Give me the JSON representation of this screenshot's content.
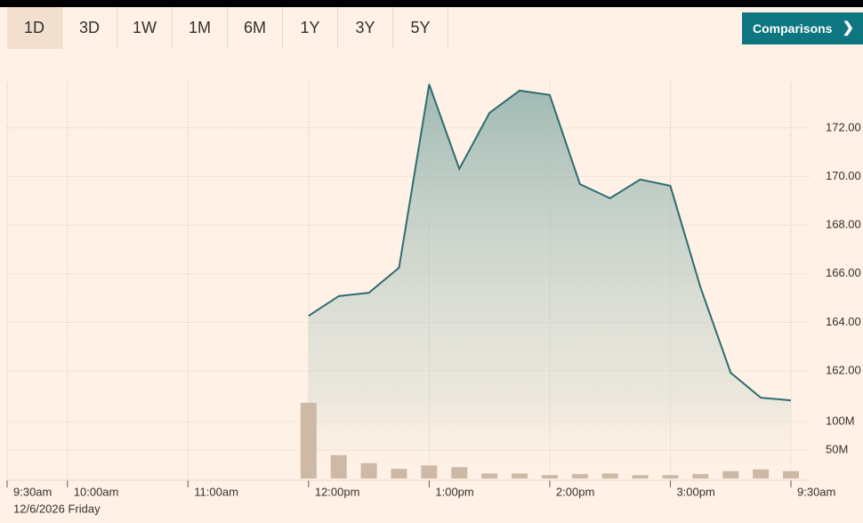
{
  "range_tabs": [
    "1D",
    "3D",
    "1W",
    "1M",
    "6M",
    "1Y",
    "3Y",
    "5Y"
  ],
  "selected_tab": "1D",
  "comparisons_button": "Comparisons",
  "chart_data": {
    "type": "line",
    "x": [
      150,
      165,
      180,
      195,
      210,
      225,
      240,
      255,
      270,
      285,
      300,
      315,
      330,
      345,
      360,
      375,
      390
    ],
    "xlim": [
      0,
      390
    ],
    "xticks": [
      {
        "value": 0,
        "label": "9:30am"
      },
      {
        "value": 30,
        "label": "10:00am"
      },
      {
        "value": 90,
        "label": "11:00am"
      },
      {
        "value": 150,
        "label": "12:00pm"
      },
      {
        "value": 210,
        "label": "1:00pm"
      },
      {
        "value": 270,
        "label": "2:00pm"
      },
      {
        "value": 330,
        "label": "3:00pm"
      },
      {
        "value": 390,
        "label": "9:30am"
      }
    ],
    "annotation": "12/6/2026 Friday",
    "series": [
      {
        "color": "#2e6d70",
        "values": [
          164.27,
          165.08,
          165.22,
          166.25,
          173.8,
          170.32,
          172.62,
          173.54,
          173.36,
          169.69,
          169.11,
          169.88,
          169.62,
          165.44,
          161.93,
          160.9,
          160.79
        ]
      },
      {
        "type": "bar",
        "axis": "y2",
        "color": "#cdb9a6",
        "values": [
          133,
          41,
          27,
          17,
          23,
          20,
          9,
          9,
          6,
          8,
          9,
          6,
          6,
          8,
          13,
          16,
          13
        ]
      }
    ],
    "ylim": [
      157.5,
      173.9
    ],
    "yticks": [
      {
        "value": 162,
        "label": "162.00"
      },
      {
        "value": 164,
        "label": "164.00"
      },
      {
        "value": 166,
        "label": "166.00"
      },
      {
        "value": 168,
        "label": "168.00"
      },
      {
        "value": 170,
        "label": "170.00"
      },
      {
        "value": 172,
        "label": "172.00"
      }
    ],
    "y2lim": [
      0,
      140
    ],
    "y2ticks": [
      {
        "value": 50,
        "label": "50M"
      },
      {
        "value": 100,
        "label": "100M"
      }
    ],
    "grid": true
  }
}
